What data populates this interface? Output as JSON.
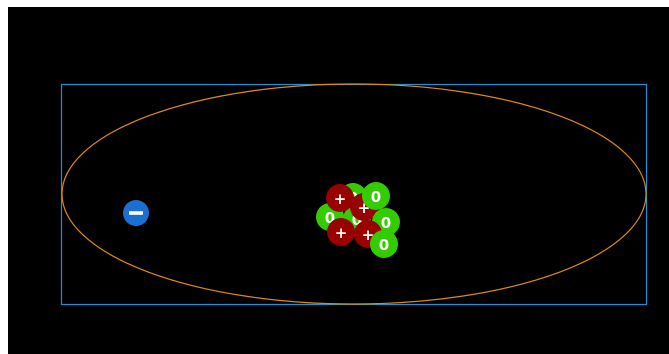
{
  "colors": {
    "background": "#000000",
    "box_stroke": "#1e90d6",
    "orbit_stroke": "#e08a10",
    "proton": "#990000",
    "neutron": "#33cc00",
    "electron": "#1a6fd0"
  },
  "symbols": {
    "proton": "+",
    "neutron": "0",
    "electron": "−"
  },
  "nucleus": {
    "protons": 4,
    "neutrons": 6
  },
  "electrons": 1
}
